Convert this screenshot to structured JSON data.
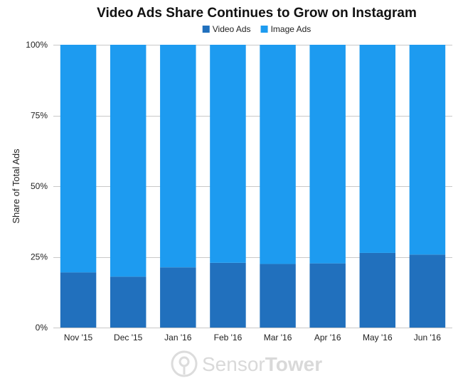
{
  "chart_data": {
    "type": "bar",
    "stacked": true,
    "title": "Video Ads Share Continues to Grow on Instagram",
    "ylabel": "Share of Total Ads",
    "xlabel": "",
    "categories": [
      "Nov '15",
      "Dec '15",
      "Jan '16",
      "Feb '16",
      "Mar '16",
      "Apr '16",
      "May '16",
      "Jun '16"
    ],
    "series": [
      {
        "name": "Video Ads",
        "color": "#2170bd",
        "values": [
          19.5,
          18,
          21.3,
          22.9,
          22.5,
          22.7,
          26.4,
          25.8
        ]
      },
      {
        "name": "Image Ads",
        "color": "#1d9bf0",
        "values": [
          80.5,
          82,
          78.7,
          77.1,
          77.5,
          77.3,
          73.6,
          74.2
        ]
      }
    ],
    "ylim": [
      0,
      100
    ],
    "yticks": [
      0,
      25,
      50,
      75,
      100
    ],
    "yticklabels": [
      "0%",
      "25%",
      "50%",
      "75%",
      "100%"
    ],
    "grid": true,
    "legend_position": "top-center"
  },
  "watermark": {
    "brand_part1": "Sensor",
    "brand_part2": "Tower",
    "icon": "sensortower-logo-icon"
  }
}
